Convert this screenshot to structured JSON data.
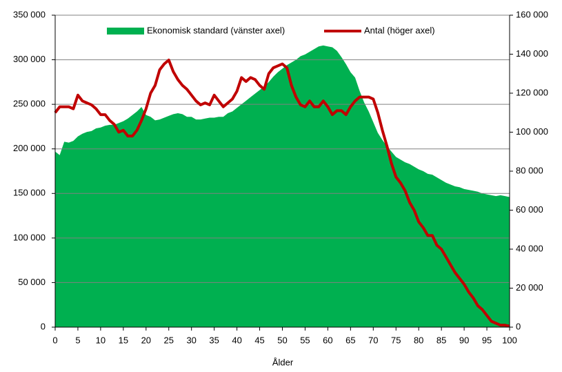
{
  "chart_data": {
    "type": "area-line",
    "x_label": "Ålder",
    "x": [
      0,
      1,
      2,
      3,
      4,
      5,
      6,
      7,
      8,
      9,
      10,
      11,
      12,
      13,
      14,
      15,
      16,
      17,
      18,
      19,
      20,
      21,
      22,
      23,
      24,
      25,
      26,
      27,
      28,
      29,
      30,
      31,
      32,
      33,
      34,
      35,
      36,
      37,
      38,
      39,
      40,
      41,
      42,
      43,
      44,
      45,
      46,
      47,
      48,
      49,
      50,
      51,
      52,
      53,
      54,
      55,
      56,
      57,
      58,
      59,
      60,
      61,
      62,
      63,
      64,
      65,
      66,
      67,
      68,
      69,
      70,
      71,
      72,
      73,
      74,
      75,
      76,
      77,
      78,
      79,
      80,
      81,
      82,
      83,
      84,
      85,
      86,
      87,
      88,
      89,
      90,
      91,
      92,
      93,
      94,
      95,
      96,
      97,
      98,
      99,
      100
    ],
    "xlim": [
      0,
      100
    ],
    "xticks": [
      0,
      5,
      10,
      15,
      20,
      25,
      30,
      35,
      40,
      45,
      50,
      55,
      60,
      65,
      70,
      75,
      80,
      85,
      90,
      95,
      100
    ],
    "ylim": [
      0,
      350000
    ],
    "yticks": [
      0,
      {
        "value": 50000,
        "label": "50 000"
      },
      {
        "value": 100000,
        "label": "100 000"
      },
      {
        "value": 150000,
        "label": "150 000"
      },
      {
        "value": 200000,
        "label": "200 000"
      },
      {
        "value": 250000,
        "label": "250 000"
      },
      {
        "value": 300000,
        "label": "300 000"
      },
      {
        "value": 350000,
        "label": "350 000"
      }
    ],
    "y2lim": [
      0,
      160000
    ],
    "y2ticks": [
      0,
      {
        "value": 20000,
        "label": "20 000"
      },
      {
        "value": 40000,
        "label": "40 000"
      },
      {
        "value": 60000,
        "label": "60 000"
      },
      {
        "value": 80000,
        "label": "80 000"
      },
      {
        "value": 100000,
        "label": "100 000"
      },
      {
        "value": 120000,
        "label": "120 000"
      },
      {
        "value": 140000,
        "label": "140 000"
      },
      {
        "value": 160000,
        "label": "160 000"
      }
    ],
    "grid": true,
    "series": [
      {
        "name": "Ekonomisk standard (vänster axel)",
        "color": "#00b050",
        "kind": "area",
        "values": [
          197000,
          193000,
          208000,
          207000,
          209000,
          214000,
          217000,
          219000,
          220000,
          223000,
          224000,
          226000,
          227000,
          227000,
          229000,
          231000,
          234000,
          238000,
          242000,
          247000,
          238000,
          236000,
          232000,
          233000,
          235000,
          237000,
          239000,
          240000,
          239000,
          236000,
          236000,
          233000,
          233000,
          234000,
          235000,
          235000,
          236000,
          236000,
          240000,
          242000,
          246000,
          250000,
          254000,
          258000,
          262000,
          266000,
          270000,
          275000,
          281000,
          286000,
          290000,
          294000,
          297000,
          300000,
          304000,
          306000,
          309000,
          312000,
          315000,
          316000,
          315000,
          314000,
          310000,
          303000,
          295000,
          286000,
          280000,
          265000,
          252000,
          242000,
          230000,
          218000,
          210000,
          203000,
          197000,
          191000,
          188000,
          185000,
          183000,
          180000,
          177000,
          175000,
          172000,
          171000,
          168000,
          165000,
          162000,
          160000,
          158000,
          157000,
          155000,
          154000,
          153000,
          152000,
          150000,
          149000,
          148000,
          147000,
          148000,
          147000,
          146000
        ]
      },
      {
        "name": "Antal (höger axel)",
        "color": "#c00000",
        "kind": "line",
        "axis": "y2",
        "values": [
          110000,
          113000,
          113000,
          113000,
          112000,
          119000,
          116000,
          115000,
          114000,
          112000,
          109000,
          109000,
          106000,
          104000,
          100000,
          101000,
          98000,
          98000,
          101000,
          106000,
          112000,
          120000,
          124000,
          132000,
          135000,
          137000,
          131000,
          127000,
          124000,
          122000,
          119000,
          116000,
          114000,
          115000,
          114000,
          119000,
          116000,
          113000,
          115000,
          117000,
          121000,
          128000,
          126000,
          128000,
          127000,
          124000,
          122000,
          130000,
          133000,
          134000,
          135000,
          133000,
          124000,
          118000,
          114000,
          113000,
          116000,
          113000,
          113000,
          116000,
          113000,
          109000,
          111000,
          111000,
          109000,
          113000,
          116000,
          118000,
          118000,
          118000,
          117000,
          110000,
          101000,
          93000,
          84000,
          77000,
          74000,
          70000,
          64000,
          60000,
          54000,
          51000,
          47000,
          47000,
          42000,
          40000,
          36000,
          32000,
          28000,
          25000,
          22000,
          18000,
          15000,
          11000,
          9000,
          6000,
          3000,
          2000,
          1000,
          1000,
          500
        ]
      }
    ]
  }
}
